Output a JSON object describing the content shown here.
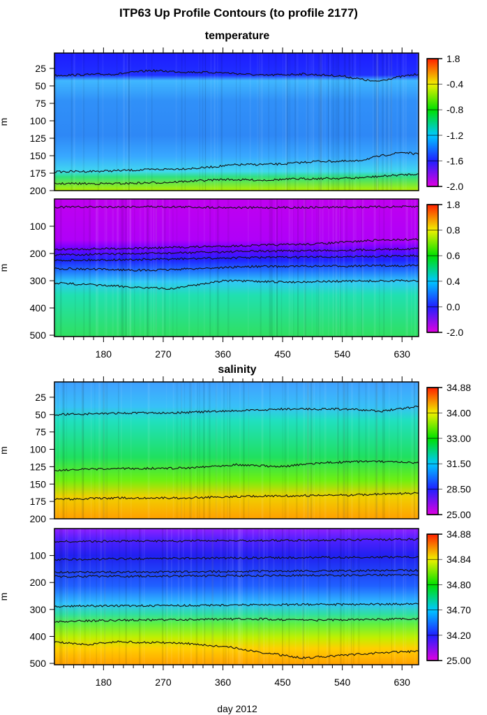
{
  "title": "ITP63 Up Profile Contours (to profile 2177)",
  "chart_data": [
    {
      "type": "heatmap",
      "section": "temperature",
      "ylabel": "m",
      "ylim": [
        200,
        3
      ],
      "xlim": [
        106,
        655
      ],
      "yticks": [
        25,
        50,
        75,
        100,
        125,
        150,
        175,
        200
      ],
      "xticks": [
        180,
        270,
        360,
        450,
        540,
        630
      ],
      "colorbar_ticks": [
        "1.8",
        "-0.4",
        "-0.8",
        "-1.2",
        "-1.6",
        "-2.0"
      ],
      "color_stops": [
        [
          0,
          "#1c1cff"
        ],
        [
          0.16,
          "#2030ff"
        ],
        [
          0.2,
          "#40b8ff"
        ],
        [
          0.35,
          "#3090f8"
        ],
        [
          0.6,
          "#2e88f6"
        ],
        [
          0.75,
          "#38a8ff"
        ],
        [
          0.86,
          "#40d8f0"
        ],
        [
          0.9,
          "#30e080"
        ],
        [
          1,
          "#b0f000"
        ]
      ],
      "contours": [
        [
          [
            106,
            35
          ],
          [
            200,
            33
          ],
          [
            250,
            28
          ],
          [
            300,
            30
          ],
          [
            360,
            31
          ],
          [
            420,
            35
          ],
          [
            480,
            33
          ],
          [
            540,
            36
          ],
          [
            590,
            44
          ],
          [
            620,
            38
          ],
          [
            655,
            33
          ]
        ],
        [
          [
            106,
            173
          ],
          [
            180,
            172
          ],
          [
            250,
            170
          ],
          [
            320,
            168
          ],
          [
            380,
            163
          ],
          [
            450,
            162
          ],
          [
            500,
            158
          ],
          [
            560,
            158
          ],
          [
            600,
            150
          ],
          [
            630,
            145
          ],
          [
            655,
            148
          ]
        ],
        [
          [
            106,
            190
          ],
          [
            200,
            190
          ],
          [
            280,
            188
          ],
          [
            360,
            184
          ],
          [
            420,
            185
          ],
          [
            480,
            183
          ],
          [
            560,
            182
          ],
          [
            620,
            178
          ],
          [
            655,
            176
          ]
        ]
      ]
    },
    {
      "type": "heatmap",
      "section": "temperature",
      "ylabel": "m",
      "ylim": [
        505,
        0
      ],
      "xlim": [
        106,
        655
      ],
      "yticks": [
        100,
        200,
        300,
        400,
        500
      ],
      "xticks": [
        180,
        270,
        360,
        450,
        540,
        630
      ],
      "xticklabels": [
        "180",
        "270",
        "360",
        "450",
        "540",
        "630"
      ],
      "colorbar_ticks": [
        "1.8",
        "0.8",
        "0.6",
        "0.4",
        "0.0",
        "-2.0"
      ],
      "color_stops": [
        [
          0,
          "#c000f0"
        ],
        [
          0.3,
          "#b000f8"
        ],
        [
          0.36,
          "#7000ff"
        ],
        [
          0.44,
          "#2020ff"
        ],
        [
          0.52,
          "#2070ff"
        ],
        [
          0.6,
          "#30c8f8"
        ],
        [
          0.7,
          "#20e0b0"
        ],
        [
          1,
          "#30e060"
        ]
      ],
      "contours": [
        [
          [
            106,
            30
          ],
          [
            250,
            28
          ],
          [
            400,
            32
          ],
          [
            550,
            30
          ],
          [
            655,
            28
          ]
        ],
        [
          [
            106,
            185
          ],
          [
            250,
            180
          ],
          [
            380,
            172
          ],
          [
            500,
            165
          ],
          [
            600,
            150
          ],
          [
            655,
            148
          ]
        ],
        [
          [
            106,
            205
          ],
          [
            250,
            200
          ],
          [
            400,
            192
          ],
          [
            550,
            188
          ],
          [
            655,
            182
          ]
        ],
        [
          [
            106,
            225
          ],
          [
            250,
            222
          ],
          [
            400,
            215
          ],
          [
            550,
            212
          ],
          [
            655,
            208
          ]
        ],
        [
          [
            106,
            255
          ],
          [
            250,
            262
          ],
          [
            400,
            248
          ],
          [
            550,
            246
          ],
          [
            655,
            244
          ]
        ],
        [
          [
            106,
            308
          ],
          [
            200,
            320
          ],
          [
            280,
            330
          ],
          [
            360,
            300
          ],
          [
            450,
            305
          ],
          [
            540,
            302
          ],
          [
            655,
            300
          ]
        ]
      ]
    },
    {
      "type": "heatmap",
      "section": "salinity",
      "ylabel": "m",
      "ylim": [
        200,
        3
      ],
      "xlim": [
        106,
        655
      ],
      "yticks": [
        25,
        50,
        75,
        100,
        125,
        150,
        175,
        200
      ],
      "xticks": [
        180,
        270,
        360,
        450,
        540,
        630
      ],
      "colorbar_ticks": [
        "34.88",
        "34.00",
        "33.00",
        "31.50",
        "28.50",
        "25.00"
      ],
      "color_stops": [
        [
          0,
          "#40a0ff"
        ],
        [
          0.18,
          "#38c0f8"
        ],
        [
          0.28,
          "#20e0c0"
        ],
        [
          0.55,
          "#20e060"
        ],
        [
          0.72,
          "#70f010"
        ],
        [
          0.84,
          "#f0d000"
        ],
        [
          1,
          "#ffa000"
        ]
      ],
      "contours": [
        [
          [
            106,
            50
          ],
          [
            200,
            48
          ],
          [
            300,
            47
          ],
          [
            400,
            44
          ],
          [
            450,
            42
          ],
          [
            540,
            42
          ],
          [
            600,
            45
          ],
          [
            655,
            38
          ]
        ],
        [
          [
            106,
            130
          ],
          [
            200,
            128
          ],
          [
            300,
            127
          ],
          [
            380,
            122
          ],
          [
            450,
            125
          ],
          [
            500,
            120
          ],
          [
            580,
            117
          ],
          [
            655,
            120
          ]
        ],
        [
          [
            106,
            172
          ],
          [
            200,
            170
          ],
          [
            300,
            170
          ],
          [
            380,
            168
          ],
          [
            450,
            167
          ],
          [
            540,
            166
          ],
          [
            655,
            163
          ]
        ]
      ]
    },
    {
      "type": "heatmap",
      "section": "salinity",
      "ylabel": "m",
      "ylim": [
        505,
        0
      ],
      "xlim": [
        106,
        655
      ],
      "xlabel": "day 2012",
      "yticks": [
        100,
        200,
        300,
        400,
        500
      ],
      "xticks": [
        180,
        270,
        360,
        450,
        540,
        630
      ],
      "xticklabels": [
        "180",
        "270",
        "360",
        "450",
        "540",
        "630"
      ],
      "colorbar_ticks": [
        "34.88",
        "34.84",
        "34.80",
        "34.70",
        "34.20",
        "25.00"
      ],
      "color_stops": [
        [
          0,
          "#9020ff"
        ],
        [
          0.08,
          "#5020ff"
        ],
        [
          0.2,
          "#2020f0"
        ],
        [
          0.42,
          "#2060ff"
        ],
        [
          0.55,
          "#30c0ff"
        ],
        [
          0.63,
          "#30e0a0"
        ],
        [
          0.7,
          "#60f040"
        ],
        [
          0.8,
          "#c0f000"
        ],
        [
          0.88,
          "#ffd000"
        ],
        [
          1,
          "#ffa000"
        ]
      ],
      "contours": [
        [
          [
            106,
            48
          ],
          [
            300,
            46
          ],
          [
            450,
            44
          ],
          [
            655,
            40
          ]
        ],
        [
          [
            106,
            115
          ],
          [
            300,
            110
          ],
          [
            450,
            108
          ],
          [
            655,
            105
          ]
        ],
        [
          [
            106,
            162
          ],
          [
            300,
            160
          ],
          [
            450,
            158
          ],
          [
            655,
            155
          ]
        ],
        [
          [
            106,
            178
          ],
          [
            300,
            176
          ],
          [
            450,
            174
          ],
          [
            655,
            172
          ]
        ],
        [
          [
            106,
            288
          ],
          [
            300,
            285
          ],
          [
            450,
            282
          ],
          [
            655,
            280
          ]
        ],
        [
          [
            106,
            345
          ],
          [
            200,
            340
          ],
          [
            300,
            338
          ],
          [
            400,
            335
          ],
          [
            500,
            340
          ],
          [
            655,
            335
          ]
        ],
        [
          [
            106,
            420
          ],
          [
            160,
            430
          ],
          [
            200,
            420
          ],
          [
            300,
            425
          ],
          [
            370,
            440
          ],
          [
            420,
            460
          ],
          [
            480,
            480
          ],
          [
            540,
            470
          ],
          [
            600,
            460
          ],
          [
            655,
            455
          ]
        ]
      ]
    }
  ],
  "colorbar_palette": [
    "#e000e0",
    "#2020ff",
    "#00c8ff",
    "#00e000",
    "#f0f000",
    "#ff2000"
  ],
  "subtitles": {
    "temperature": "temperature",
    "salinity": "salinity"
  },
  "xlabel": "day 2012"
}
